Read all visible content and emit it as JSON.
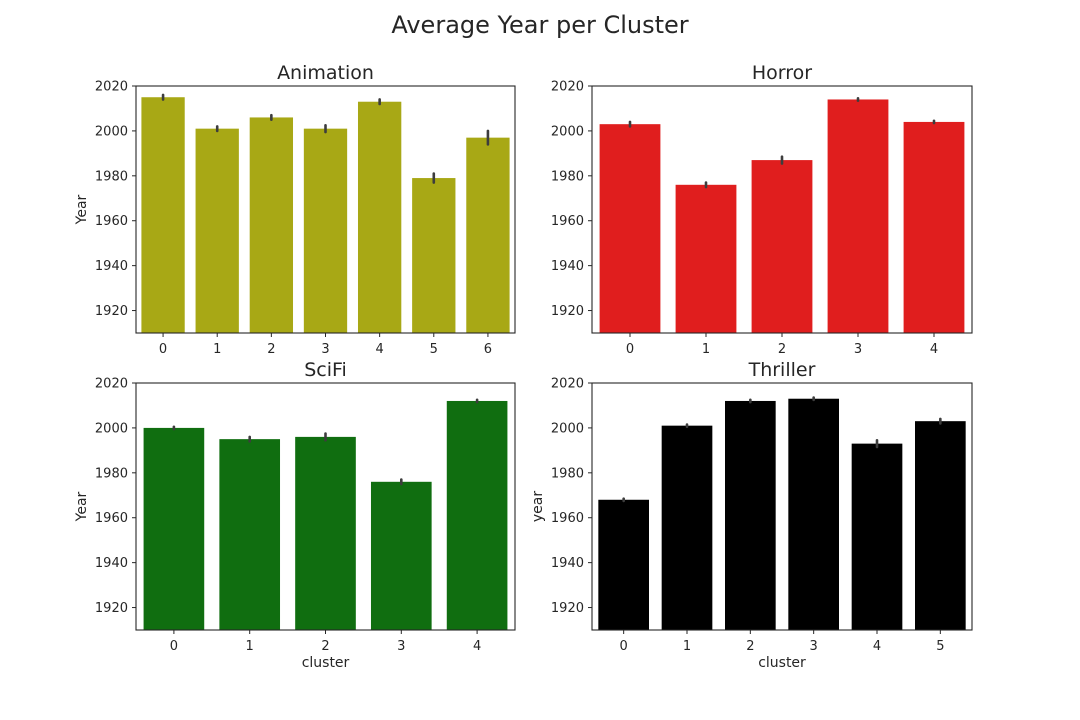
{
  "figure": {
    "title": "Average Year per Cluster"
  },
  "chart_data": [
    {
      "type": "bar",
      "title": "Animation",
      "xlabel": "",
      "ylabel": "Year",
      "ylim": [
        1910,
        2020
      ],
      "yticks": [
        1920,
        1940,
        1960,
        1980,
        2000,
        2020
      ],
      "categories": [
        "0",
        "1",
        "2",
        "3",
        "4",
        "5",
        "6"
      ],
      "values": [
        2015,
        2001,
        2006,
        2001,
        2013,
        1979,
        1997
      ],
      "errors": [
        1,
        1,
        1,
        1.5,
        1,
        2,
        3
      ],
      "color": "#a8a815"
    },
    {
      "type": "bar",
      "title": "Horror",
      "xlabel": "",
      "ylabel": "",
      "ylim": [
        1910,
        2020
      ],
      "yticks": [
        1920,
        1940,
        1960,
        1980,
        2000,
        2020
      ],
      "categories": [
        "0",
        "1",
        "2",
        "3",
        "4"
      ],
      "values": [
        2003,
        1976,
        1987,
        2014,
        2004
      ],
      "errors": [
        1,
        1,
        1.5,
        0.5,
        0.5
      ],
      "color": "#e01e1e"
    },
    {
      "type": "bar",
      "title": "SciFi",
      "xlabel": "cluster",
      "ylabel": "Year",
      "ylim": [
        1910,
        2020
      ],
      "yticks": [
        1920,
        1940,
        1960,
        1980,
        2000,
        2020
      ],
      "categories": [
        "0",
        "1",
        "2",
        "3",
        "4"
      ],
      "values": [
        2000,
        1995,
        1996,
        1976,
        2012
      ],
      "errors": [
        0.5,
        1,
        1.5,
        1,
        0.5
      ],
      "color": "#106e10"
    },
    {
      "type": "bar",
      "title": "Thriller",
      "xlabel": "cluster",
      "ylabel": "year",
      "ylim": [
        1910,
        2020
      ],
      "yticks": [
        1920,
        1940,
        1960,
        1980,
        2000,
        2020
      ],
      "categories": [
        "0",
        "1",
        "2",
        "3",
        "4",
        "5"
      ],
      "values": [
        1968,
        2001,
        2012,
        2013,
        1993,
        2003
      ],
      "errors": [
        0.5,
        0.5,
        0.5,
        0.5,
        1.5,
        1
      ],
      "color": "#000000"
    }
  ]
}
